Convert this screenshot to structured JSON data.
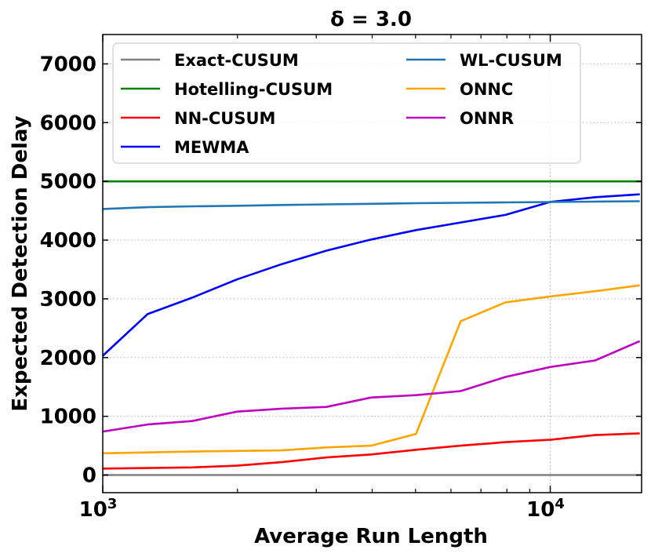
{
  "chart_data": {
    "type": "line",
    "title": "δ = 3.0",
    "xlabel": "Average Run Length",
    "ylabel": "Expected Detection Delay",
    "xscale": "log",
    "xlim": [
      1000,
      16000
    ],
    "ylim": [
      -300,
      7500
    ],
    "x_ticks": [
      {
        "value": 1000,
        "base": "10",
        "exp": "3"
      },
      {
        "value": 10000,
        "base": "10",
        "exp": "4"
      }
    ],
    "y_ticks": [
      0,
      1000,
      2000,
      3000,
      4000,
      5000,
      6000,
      7000
    ],
    "grid": true,
    "grid_style": "dotted",
    "legend_position": "top",
    "legend_columns": 2,
    "series": [
      {
        "name": "Exact-CUSUM",
        "color": "#808080",
        "x": [
          1000,
          16000
        ],
        "y": [
          0,
          0
        ]
      },
      {
        "name": "Hotelling-CUSUM",
        "color": "#008000",
        "x": [
          1000,
          16000
        ],
        "y": [
          5000,
          5000
        ]
      },
      {
        "name": "NN-CUSUM",
        "color": "#ff0000",
        "x": [
          1000,
          1259,
          1585,
          1995,
          2512,
          3162,
          3981,
          5012,
          6310,
          7943,
          10000,
          12589,
          15849
        ],
        "y": [
          110,
          120,
          130,
          160,
          220,
          300,
          350,
          430,
          500,
          560,
          600,
          680,
          710
        ]
      },
      {
        "name": "MEWMA",
        "color": "#0000ff",
        "x": [
          1000,
          1259,
          1585,
          1995,
          2512,
          3162,
          3981,
          5012,
          6310,
          7943,
          10000,
          12589,
          15849
        ],
        "y": [
          2030,
          2740,
          3020,
          3330,
          3590,
          3820,
          4010,
          4170,
          4300,
          4430,
          4650,
          4730,
          4780
        ]
      },
      {
        "name": "WL-CUSUM",
        "color": "#1f77b4",
        "x": [
          1000,
          1259,
          1585,
          1995,
          2512,
          3162,
          3981,
          5012,
          6310,
          7943,
          10000,
          12589,
          15849
        ],
        "y": [
          4530,
          4560,
          4575,
          4585,
          4598,
          4608,
          4618,
          4628,
          4635,
          4642,
          4648,
          4655,
          4662
        ]
      },
      {
        "name": "ONNC",
        "color": "#ffa500",
        "x": [
          1000,
          1259,
          1585,
          1995,
          2512,
          3162,
          3981,
          5012,
          6310,
          7943,
          10000,
          12589,
          15849
        ],
        "y": [
          370,
          385,
          400,
          410,
          420,
          470,
          500,
          700,
          2620,
          2940,
          3040,
          3130,
          3230
        ]
      },
      {
        "name": "ONNR",
        "color": "#bf00bf",
        "x": [
          1000,
          1259,
          1585,
          1995,
          2512,
          3162,
          3981,
          5012,
          6310,
          7943,
          10000,
          12589,
          15849
        ],
        "y": [
          740,
          860,
          920,
          1080,
          1130,
          1160,
          1320,
          1360,
          1430,
          1670,
          1840,
          1950,
          2280
        ]
      }
    ]
  }
}
